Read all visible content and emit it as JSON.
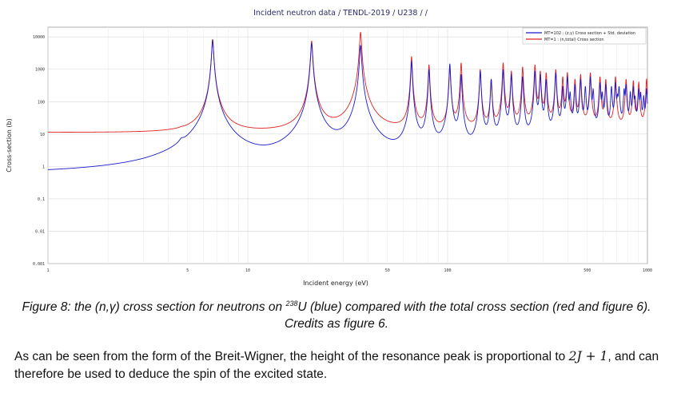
{
  "chart_data": {
    "type": "line",
    "title": "Incident neutron data / TENDL-2019 / U238 / /",
    "xlabel": "Incident energy (eV)",
    "ylabel": "Cross-section (b)",
    "x_scale": "log",
    "y_scale": "log",
    "xlim": [
      1,
      1000
    ],
    "ylim": [
      0.001,
      20000
    ],
    "x_tick_values": [
      1,
      5,
      10,
      50,
      100,
      500,
      1000
    ],
    "x_tick_labels": [
      "1",
      "5",
      "10",
      "50",
      "100",
      "500",
      "1000"
    ],
    "y_tick_values": [
      10000,
      1000,
      100,
      10,
      1,
      0.1,
      0.01,
      0.001
    ],
    "y_tick_labels": [
      "10000",
      "1000",
      "100",
      "10",
      "1",
      "0.1",
      "0.01",
      "0.001"
    ],
    "grid": true,
    "legend_position": "top-right",
    "series": [
      {
        "name": "MT=102 : (z,γ) Cross section + Std. deviation",
        "color": "#1a1acc",
        "baseline": [
          [
            1,
            0.48
          ],
          [
            3,
            0.45
          ],
          [
            4,
            0.5
          ],
          [
            5.5,
            0.9
          ],
          [
            8,
            0.7
          ],
          [
            12,
            0.35
          ],
          [
            20,
            0.3
          ],
          [
            36,
            0.35
          ],
          [
            50,
            0.15
          ],
          [
            70,
            0.12
          ],
          [
            100,
            0.07
          ],
          [
            200,
            0.05
          ],
          [
            400,
            0.02
          ],
          [
            1000,
            0.01
          ]
        ],
        "resonances": [
          {
            "e": 4.66,
            "peak": 2.0,
            "w": 0.012
          },
          {
            "e": 6.67,
            "peak": 8000,
            "w": 0.004
          },
          {
            "e": 10.24,
            "peak": 1.2,
            "w": 0.006
          },
          {
            "e": 11.1,
            "peak": 0.85,
            "w": 0.006
          },
          {
            "e": 20.87,
            "peak": 6500,
            "w": 0.004
          },
          {
            "e": 36.68,
            "peak": 5500,
            "w": 0.004
          },
          {
            "e": 66.0,
            "peak": 1800,
            "w": 0.003
          },
          {
            "e": 80.7,
            "peak": 1000,
            "w": 0.003
          },
          {
            "e": 102.6,
            "peak": 1500,
            "w": 0.003
          },
          {
            "e": 116.9,
            "peak": 700,
            "w": 0.003
          },
          {
            "e": 145.7,
            "peak": 900,
            "w": 0.003
          },
          {
            "e": 165.3,
            "peak": 500,
            "w": 0.003
          },
          {
            "e": 189.7,
            "peak": 1000,
            "w": 0.003
          },
          {
            "e": 208.5,
            "peak": 700,
            "w": 0.003
          },
          {
            "e": 237.4,
            "peak": 600,
            "w": 0.003
          },
          {
            "e": 273.7,
            "peak": 900,
            "w": 0.003
          },
          {
            "e": 291.0,
            "peak": 700,
            "w": 0.003
          },
          {
            "e": 311.4,
            "peak": 500,
            "w": 0.003
          },
          {
            "e": 347.8,
            "peak": 800,
            "w": 0.003
          },
          {
            "e": 376.9,
            "peak": 300,
            "w": 0.003
          },
          {
            "e": 397.6,
            "peak": 600,
            "w": 0.003
          },
          {
            "e": 410.2,
            "peak": 200,
            "w": 0.003
          },
          {
            "e": 434.0,
            "peak": 350,
            "w": 0.003
          },
          {
            "e": 463.0,
            "peak": 500,
            "w": 0.003
          },
          {
            "e": 489.0,
            "peak": 300,
            "w": 0.003
          },
          {
            "e": 518.0,
            "peak": 600,
            "w": 0.003
          },
          {
            "e": 535.0,
            "peak": 250,
            "w": 0.003
          },
          {
            "e": 579.0,
            "peak": 400,
            "w": 0.003
          },
          {
            "e": 594.0,
            "peak": 200,
            "w": 0.003
          },
          {
            "e": 619.0,
            "peak": 350,
            "w": 0.003
          },
          {
            "e": 661.0,
            "peak": 300,
            "w": 0.003
          },
          {
            "e": 692.0,
            "peak": 400,
            "w": 0.003
          },
          {
            "e": 708.0,
            "peak": 150,
            "w": 0.003
          },
          {
            "e": 721.0,
            "peak": 300,
            "w": 0.003
          },
          {
            "e": 765.0,
            "peak": 250,
            "w": 0.003
          },
          {
            "e": 782.0,
            "peak": 350,
            "w": 0.003
          },
          {
            "e": 821.0,
            "peak": 200,
            "w": 0.003
          },
          {
            "e": 850.0,
            "peak": 300,
            "w": 0.003
          },
          {
            "e": 866.0,
            "peak": 150,
            "w": 0.003
          },
          {
            "e": 905.0,
            "peak": 250,
            "w": 0.003
          },
          {
            "e": 925.0,
            "peak": 200,
            "w": 0.003
          },
          {
            "e": 958.0,
            "peak": 150,
            "w": 0.003
          },
          {
            "e": 990.0,
            "peak": 250,
            "w": 0.003
          }
        ]
      },
      {
        "name": "MT=1 : (n,total) Cross section",
        "color": "#e02020",
        "baseline": [
          [
            1,
            11
          ],
          [
            5,
            10.5
          ],
          [
            10,
            10
          ],
          [
            20,
            10
          ],
          [
            50,
            10
          ],
          [
            100,
            10.5
          ],
          [
            1000,
            11
          ]
        ],
        "resonances": [
          {
            "e": 4.66,
            "peak": 11,
            "w": 0.01
          },
          {
            "e": 6.67,
            "peak": 8500,
            "w": 0.004
          },
          {
            "e": 10.24,
            "peak": 13,
            "w": 0.005
          },
          {
            "e": 20.87,
            "peak": 7500,
            "w": 0.004
          },
          {
            "e": 36.68,
            "peak": 14000,
            "w": 0.004
          },
          {
            "e": 66.0,
            "peak": 2500,
            "w": 0.003
          },
          {
            "e": 80.7,
            "peak": 1400,
            "w": 0.003
          },
          {
            "e": 102.6,
            "peak": 1200,
            "w": 0.003
          },
          {
            "e": 116.9,
            "peak": 1600,
            "w": 0.003
          },
          {
            "e": 145.7,
            "peak": 1000,
            "w": 0.003
          },
          {
            "e": 165.3,
            "peak": 500,
            "w": 0.003
          },
          {
            "e": 189.7,
            "peak": 1600,
            "w": 0.003
          },
          {
            "e": 208.5,
            "peak": 900,
            "w": 0.003
          },
          {
            "e": 237.4,
            "peak": 1200,
            "w": 0.003
          },
          {
            "e": 273.7,
            "peak": 1400,
            "w": 0.003
          },
          {
            "e": 291.0,
            "peak": 900,
            "w": 0.003
          },
          {
            "e": 311.4,
            "peak": 800,
            "w": 0.003
          },
          {
            "e": 347.8,
            "peak": 1000,
            "w": 0.003
          },
          {
            "e": 376.9,
            "peak": 600,
            "w": 0.003
          },
          {
            "e": 397.6,
            "peak": 800,
            "w": 0.003
          },
          {
            "e": 434.0,
            "peak": 500,
            "w": 0.003
          },
          {
            "e": 463.0,
            "peak": 700,
            "w": 0.003
          },
          {
            "e": 518.0,
            "peak": 800,
            "w": 0.003
          },
          {
            "e": 579.0,
            "peak": 600,
            "w": 0.003
          },
          {
            "e": 619.0,
            "peak": 500,
            "w": 0.003
          },
          {
            "e": 692.0,
            "peak": 600,
            "w": 0.003
          },
          {
            "e": 782.0,
            "peak": 500,
            "w": 0.003
          },
          {
            "e": 850.0,
            "peak": 450,
            "w": 0.003
          },
          {
            "e": 905.0,
            "peak": 400,
            "w": 0.003
          },
          {
            "e": 990.0,
            "peak": 500,
            "w": 0.003
          }
        ]
      }
    ]
  },
  "caption": {
    "prefix": "Figure 8: the (n,γ) cross section for neutrons on ",
    "isotope_mass": "238",
    "isotope_symbol": "U",
    "suffix": " (blue) compared with the total cross section (red and figure 6).  Credits as figure 6."
  },
  "body": {
    "part1": "As can be seen from the form of the Breit-Wigner, the height of the resonance peak is proportional to ",
    "math": "2J + 1",
    "part2": ", and can therefore be used to deduce the spin of the excited state."
  }
}
